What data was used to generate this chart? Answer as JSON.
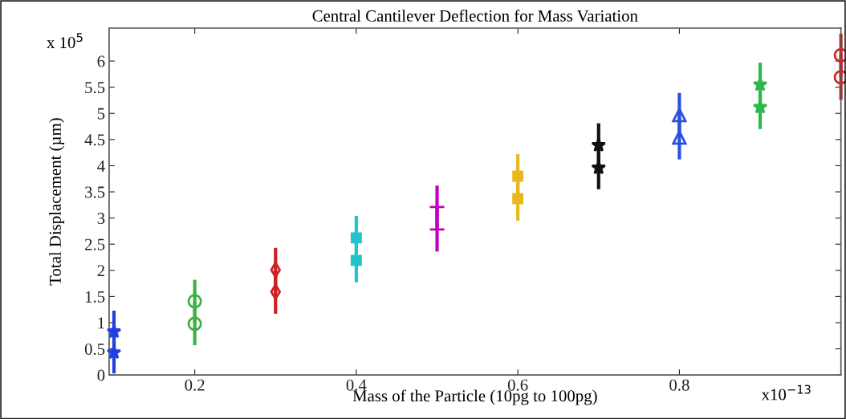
{
  "chart_data": {
    "type": "scatter",
    "title": "Central Cantilever Deflection for Mass Variation",
    "xlabel": "Mass of the Particle (10pg to 100pg)",
    "ylabel": "Total Displacement (µm)",
    "annotations": [
      "x 10$^{5}$",
      "x10$^{−13}$"
    ],
    "xlim": [
      0.094,
      1.0
    ],
    "xticks": [
      0.2,
      0.4,
      0.6,
      0.8
    ],
    "ylim": [
      0,
      6.63
    ],
    "yticks": [
      0,
      0.5,
      1,
      1.5,
      2,
      2.5,
      3,
      3.5,
      4,
      4.5,
      5,
      5.5,
      6
    ],
    "grid": false,
    "legend": false,
    "series": [
      {
        "x": [
          0.1,
          0.1
        ],
        "values": [
          0.83,
          0.43
        ],
        "errors": [
          0.4,
          0.4
        ],
        "color": "#2040e0",
        "marker": "star"
      },
      {
        "x": [
          0.2,
          0.2
        ],
        "values": [
          1.41,
          0.98
        ],
        "errors": [
          0.41,
          0.41
        ],
        "color": "#3cb043",
        "marker": "circle"
      },
      {
        "x": [
          0.3,
          0.3
        ],
        "values": [
          2.01,
          1.59
        ],
        "errors": [
          0.42,
          0.42
        ],
        "color": "#cc2222",
        "marker": "diamond"
      },
      {
        "x": [
          0.4,
          0.4
        ],
        "values": [
          2.62,
          2.19
        ],
        "errors": [
          0.42,
          0.42
        ],
        "color": "#22c4cc",
        "marker": "square"
      },
      {
        "x": [
          0.5,
          0.5
        ],
        "values": [
          3.21,
          2.78
        ],
        "errors": [
          0.41,
          0.42
        ],
        "color": "#c000c0",
        "marker": "cross"
      },
      {
        "x": [
          0.6,
          0.6
        ],
        "values": [
          3.8,
          3.37
        ],
        "errors": [
          0.42,
          0.42
        ],
        "color": "#e8b820",
        "marker": "square"
      },
      {
        "x": [
          0.7,
          0.7
        ],
        "values": [
          4.39,
          3.96
        ],
        "errors": [
          0.42,
          0.41
        ],
        "color": "#111111",
        "marker": "star"
      },
      {
        "x": [
          0.8,
          0.8
        ],
        "values": [
          4.97,
          4.54
        ],
        "errors": [
          0.42,
          0.42
        ],
        "color": "#2a4fe0",
        "marker": "triangle"
      },
      {
        "x": [
          0.9,
          0.9
        ],
        "values": [
          5.55,
          5.12
        ],
        "errors": [
          0.42,
          0.42
        ],
        "color": "#2eb84a",
        "marker": "star"
      },
      {
        "x": [
          1.0,
          1.0
        ],
        "values": [
          6.11,
          5.69
        ],
        "errors": [
          0.41,
          0.43
        ],
        "color": "#cc2a2a",
        "marker": "circle"
      }
    ]
  }
}
